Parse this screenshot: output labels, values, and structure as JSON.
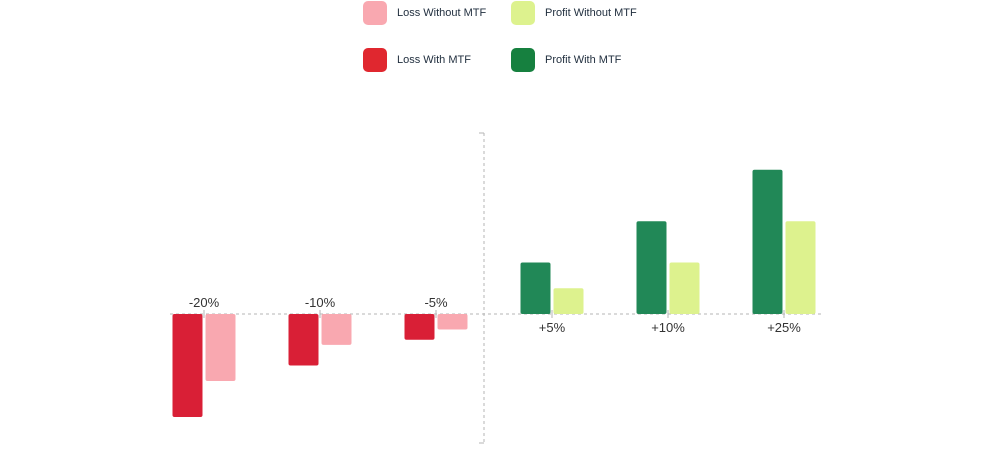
{
  "chart_data": {
    "type": "bar",
    "title": "",
    "xlabel": "",
    "ylabel": "",
    "legend_placement": "top",
    "grid": false,
    "ylim": [
      -25,
      35
    ],
    "series": [
      {
        "name": "Loss Without MTF",
        "color": "#f9a8b0"
      },
      {
        "name": "Profit Without MTF",
        "color": "#ddf28e"
      },
      {
        "name": "Loss With MTF",
        "color": "#e0272f"
      },
      {
        "name": "Profit With MTF",
        "color": "#16803f"
      }
    ],
    "groups": [
      {
        "label": "-20%",
        "with_mtf": -20,
        "without_mtf": -13,
        "with_color": "#d91f36",
        "without_color": "#f9a8b0"
      },
      {
        "label": "-10%",
        "with_mtf": -10,
        "without_mtf": -6,
        "with_color": "#d91f36",
        "without_color": "#f9a8b0"
      },
      {
        "label": "-5%",
        "with_mtf": -5,
        "without_mtf": -3,
        "with_color": "#d91f36",
        "without_color": "#f9a8b0"
      },
      {
        "label": "+5%",
        "with_mtf": 10,
        "without_mtf": 5,
        "with_color": "#218857",
        "without_color": "#ddf28e"
      },
      {
        "label": "+10%",
        "with_mtf": 18,
        "without_mtf": 10,
        "with_color": "#218857",
        "without_color": "#ddf28e"
      },
      {
        "label": "+25%",
        "with_mtf": 28,
        "without_mtf": 18,
        "with_color": "#218857",
        "without_color": "#ddf28e"
      }
    ]
  }
}
